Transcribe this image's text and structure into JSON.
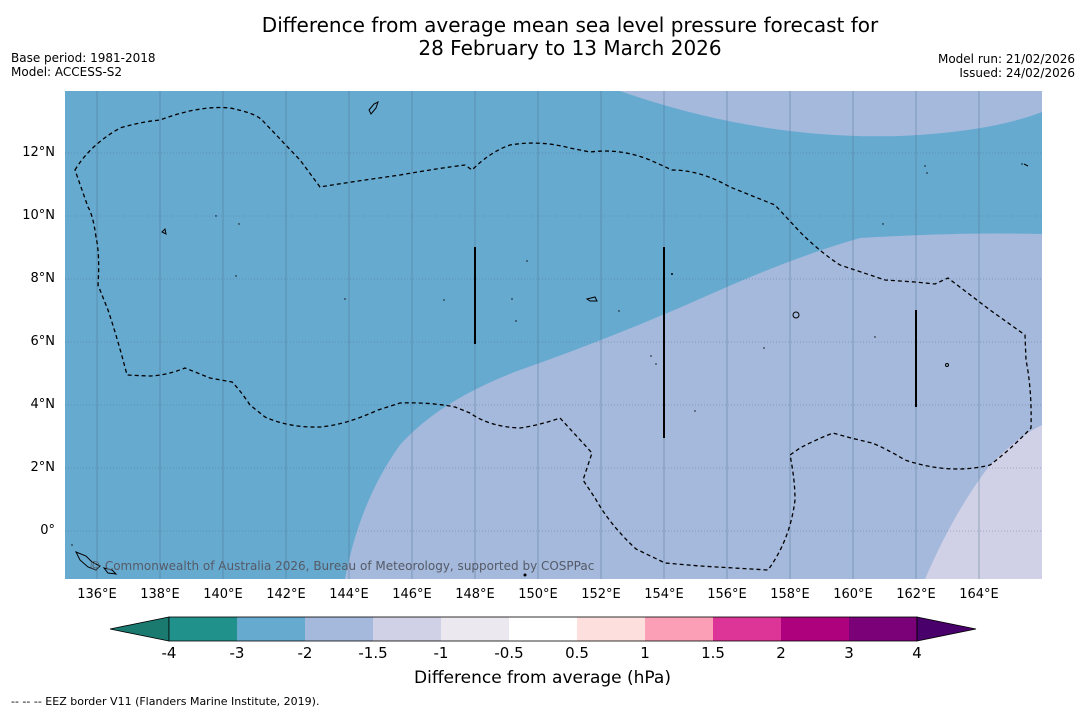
{
  "header": {
    "title_line1": "Difference from average mean sea level pressure forecast for",
    "title_line2": "28 February to 13 March 2026",
    "base_period": "Base period: 1981-2018",
    "model": "Model: ACCESS-S2",
    "model_run": "Model run: 21/02/2026",
    "issued": "Issued: 24/02/2026"
  },
  "map": {
    "lat_ticks": [
      "12°N",
      "10°N",
      "8°N",
      "6°N",
      "4°N",
      "2°N",
      "0°"
    ],
    "lon_ticks": [
      "136°E",
      "138°E",
      "140°E",
      "142°E",
      "144°E",
      "146°E",
      "148°E",
      "150°E",
      "152°E",
      "154°E",
      "156°E",
      "158°E",
      "160°E",
      "162°E",
      "164°E"
    ],
    "copyright": "© Commonwealth of Australia 2026, Bureau of Meteorology, supported by COSPPac"
  },
  "colorbar": {
    "labels": [
      "-4",
      "-3",
      "-2",
      "-1.5",
      "-1",
      "-0.5",
      "0.5",
      "1",
      "1.5",
      "2",
      "3",
      "4"
    ],
    "colors": [
      "#1a7a70",
      "#21918c",
      "#67aad0",
      "#a4b9dc",
      "#d0d0e6",
      "#ece8f0",
      "#ffffff",
      "#fde0dd",
      "#fa9fb5",
      "#dd3497",
      "#ae017e",
      "#7a0177",
      "#49006a"
    ],
    "title": "Difference from average (hPa)"
  },
  "footer": {
    "legend": "--  --  -- EEZ border V11 (Flanders Marine Institute, 2019)."
  }
}
